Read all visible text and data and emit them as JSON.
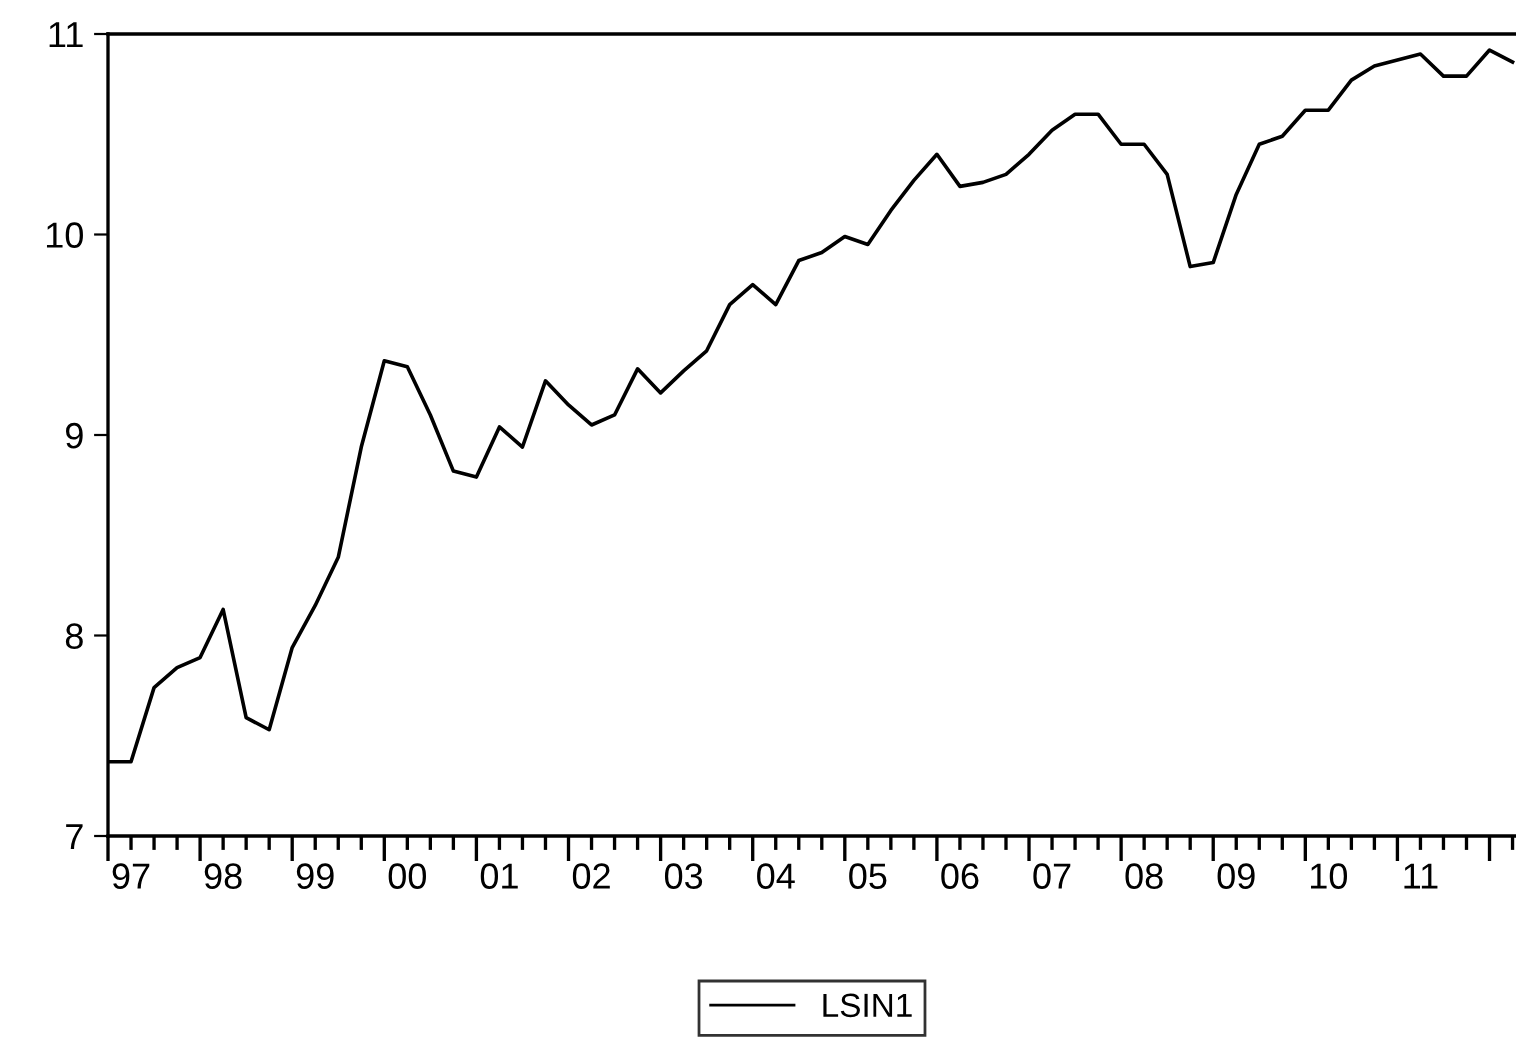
{
  "chart_data": {
    "type": "line",
    "categories": [
      null,
      "97",
      null,
      null,
      null,
      "98",
      null,
      null,
      null,
      "99",
      null,
      null,
      null,
      "00",
      null,
      null,
      null,
      "01",
      null,
      null,
      null,
      "02",
      null,
      null,
      null,
      "03",
      null,
      null,
      null,
      "04",
      null,
      null,
      null,
      "05",
      null,
      null,
      null,
      "06",
      null,
      null,
      null,
      "07",
      null,
      null,
      null,
      "08",
      null,
      null,
      null,
      "09",
      null,
      null,
      null,
      "10",
      null,
      null,
      null,
      "11",
      null,
      null,
      null,
      null
    ],
    "series": [
      {
        "name": "LSIN1",
        "color": "#000000",
        "values": [
          7.37,
          7.37,
          7.74,
          7.84,
          7.89,
          8.13,
          7.59,
          7.53,
          7.94,
          8.15,
          8.39,
          8.94,
          9.37,
          9.34,
          9.1,
          8.82,
          8.79,
          9.04,
          8.94,
          9.27,
          9.15,
          9.05,
          9.1,
          9.33,
          9.21,
          9.32,
          9.42,
          9.65,
          9.75,
          9.65,
          9.87,
          9.91,
          9.99,
          9.95,
          10.12,
          10.27,
          10.4,
          10.24,
          10.26,
          10.3,
          10.4,
          10.52,
          10.6,
          10.6,
          10.45,
          10.45,
          10.3,
          9.84,
          9.86,
          10.2,
          10.45,
          10.49,
          10.62,
          10.62,
          10.77,
          10.84,
          10.87,
          10.9,
          10.79,
          10.79,
          10.92,
          10.86
        ]
      }
    ],
    "ylim": [
      7,
      11
    ],
    "yticks": [
      7,
      8,
      9,
      10,
      11
    ],
    "legend": "bottom",
    "grid": false,
    "marker": "none",
    "line_style": "solid"
  }
}
